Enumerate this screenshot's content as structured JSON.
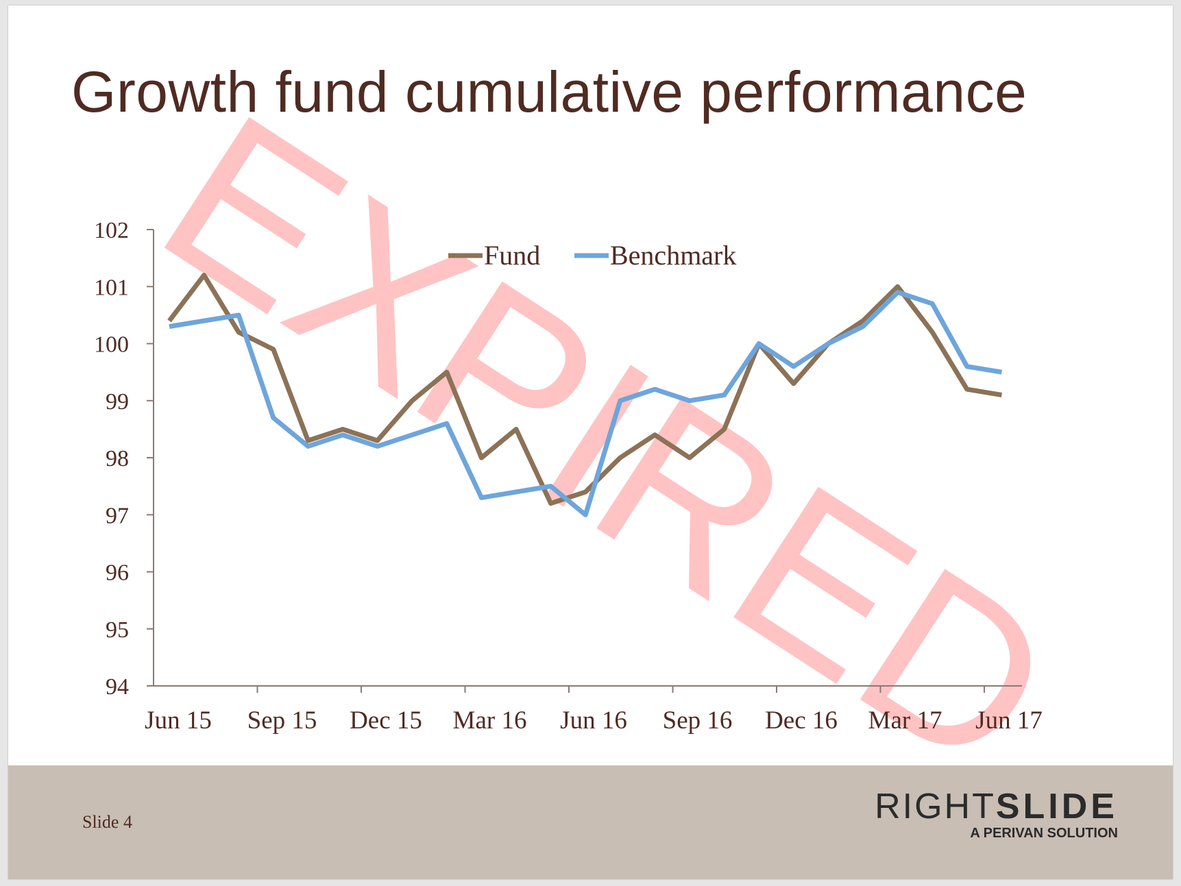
{
  "slide": {
    "title": "Growth fund cumulative performance",
    "footer_label": "Slide 4",
    "watermark": "EXPIRED",
    "logo": {
      "main_thin": "RIGHT",
      "main_bold": "SLIDE",
      "sub": "A PERIVAN SOLUTION"
    }
  },
  "colors": {
    "title": "#4f2b22",
    "fund": "#8c7256",
    "benchmark": "#6ea5dc",
    "watermark": "#ffb9b9",
    "footer_bg": "#c8beb4",
    "axis": "#8a7a72"
  },
  "chart_data": {
    "type": "line",
    "xlabel": "",
    "ylabel": "",
    "ylim": [
      94,
      102
    ],
    "yticks": [
      "94",
      "95",
      "96",
      "97",
      "98",
      "99",
      "100",
      "101",
      "102"
    ],
    "xticks": [
      "Jun 15",
      "Sep 15",
      "Dec 15",
      "Mar 16",
      "Jun 16",
      "Sep 16",
      "Dec 16",
      "Mar 17",
      "Jun 17"
    ],
    "legend_position": "top-center",
    "grid": false,
    "x_monthly_points_from": "Jun 15",
    "series": [
      {
        "name": "Fund",
        "color": "#8c7256",
        "values": [
          100.4,
          101.2,
          100.2,
          99.9,
          98.3,
          98.5,
          98.3,
          99.0,
          99.5,
          98.0,
          98.5,
          97.2,
          97.4,
          98.0,
          98.4,
          98.0,
          98.5,
          100.0,
          99.3,
          100.0,
          100.4,
          101.0,
          100.2,
          99.2,
          99.1
        ]
      },
      {
        "name": "Benchmark",
        "color": "#6ea5dc",
        "values": [
          100.3,
          100.4,
          100.5,
          98.7,
          98.2,
          98.4,
          98.2,
          98.4,
          98.6,
          97.3,
          97.4,
          97.5,
          97.0,
          99.0,
          99.2,
          99.0,
          99.1,
          100.0,
          99.6,
          100.0,
          100.3,
          100.9,
          100.7,
          99.6,
          99.5
        ]
      }
    ]
  }
}
